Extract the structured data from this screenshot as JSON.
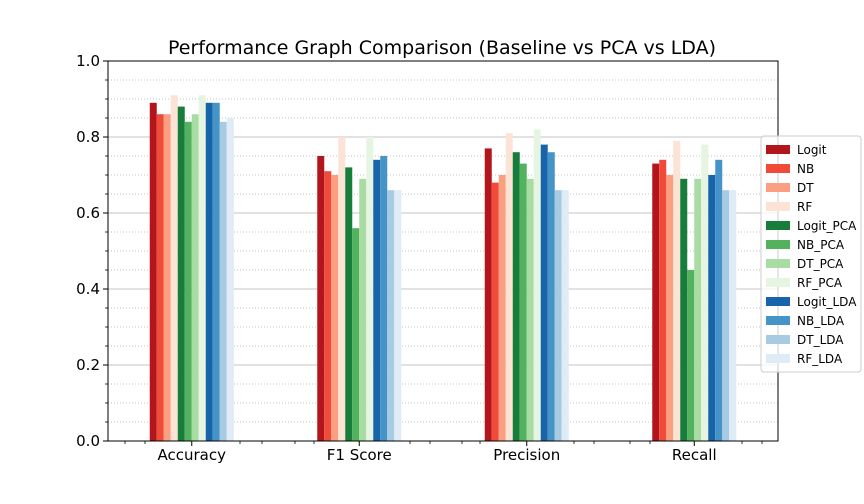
{
  "chart_data": {
    "type": "bar",
    "title": "Performance Graph Comparison (Baseline vs PCA vs LDA)",
    "xlabel": "",
    "ylabel": "",
    "ylim": [
      0,
      1.0
    ],
    "yticks": [
      0.0,
      0.2,
      0.4,
      0.6,
      0.8,
      1.0
    ],
    "ytick_labels": [
      "0.0",
      "0.2",
      "0.4",
      "0.6",
      "0.8",
      "1.0"
    ],
    "minor_ytick_step": 0.05,
    "grid": "major solid, minor dotted (y-axis)",
    "legend_position": "right",
    "categories": [
      "Accuracy",
      "F1 Score",
      "Precision",
      "Recall"
    ],
    "series": [
      {
        "name": "Logit",
        "color": "#b3151c",
        "values": [
          0.89,
          0.75,
          0.77,
          0.73
        ]
      },
      {
        "name": "NB",
        "color": "#ef4b38",
        "values": [
          0.86,
          0.71,
          0.68,
          0.74
        ]
      },
      {
        "name": "DT",
        "color": "#fb9f81",
        "values": [
          0.86,
          0.7,
          0.7,
          0.7
        ]
      },
      {
        "name": "RF",
        "color": "#fde3d6",
        "values": [
          0.91,
          0.8,
          0.81,
          0.79
        ]
      },
      {
        "name": "Logit_PCA",
        "color": "#167d3a",
        "values": [
          0.88,
          0.72,
          0.76,
          0.69
        ]
      },
      {
        "name": "NB_PCA",
        "color": "#52b25e",
        "values": [
          0.84,
          0.56,
          0.73,
          0.45
        ]
      },
      {
        "name": "DT_PCA",
        "color": "#a9dca3",
        "values": [
          0.86,
          0.69,
          0.69,
          0.69
        ]
      },
      {
        "name": "RF_PCA",
        "color": "#e6f5e1",
        "values": [
          0.91,
          0.8,
          0.82,
          0.78
        ]
      },
      {
        "name": "Logit_LDA",
        "color": "#1864aa",
        "values": [
          0.89,
          0.74,
          0.78,
          0.7
        ]
      },
      {
        "name": "NB_LDA",
        "color": "#4594c7",
        "values": [
          0.89,
          0.75,
          0.76,
          0.74
        ]
      },
      {
        "name": "DT_LDA",
        "color": "#a6cbe3",
        "values": [
          0.84,
          0.66,
          0.66,
          0.66
        ]
      },
      {
        "name": "RF_LDA",
        "color": "#dfebf7",
        "values": [
          0.85,
          0.66,
          0.66,
          0.66
        ]
      }
    ]
  }
}
